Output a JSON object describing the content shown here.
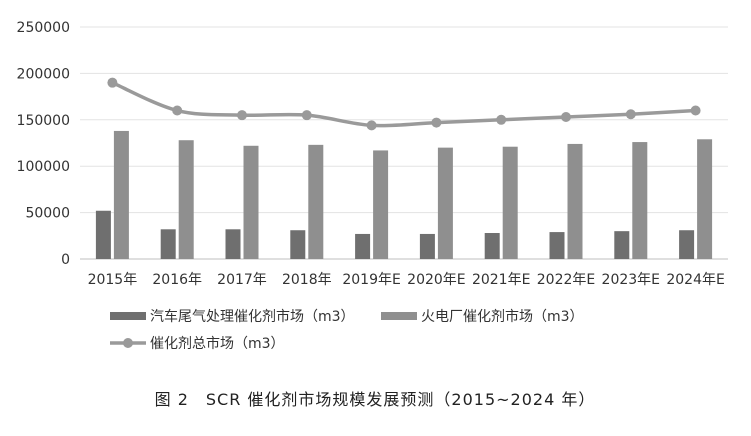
{
  "chart_data": {
    "type": "bar",
    "categories": [
      "2015年",
      "2016年",
      "2017年",
      "2018年",
      "2019年E",
      "2020年E",
      "2021年E",
      "2022年E",
      "2023年E",
      "2024年E"
    ],
    "series": [
      {
        "name": "汽车尾气处理催化剂市场（m3）",
        "type": "bar",
        "color": "#6f6f6f",
        "values": [
          52000,
          32000,
          32000,
          31000,
          27000,
          27000,
          28000,
          29000,
          30000,
          31000
        ]
      },
      {
        "name": "火电厂催化剂市场（m3）",
        "type": "bar",
        "color": "#8f8f8f",
        "values": [
          138000,
          128000,
          122000,
          123000,
          117000,
          120000,
          121000,
          124000,
          126000,
          129000
        ]
      },
      {
        "name": "催化剂总市场（m3）",
        "type": "line",
        "color": "#9a9a9a",
        "values": [
          190000,
          160000,
          155000,
          155000,
          144000,
          147000,
          150000,
          153000,
          156000,
          160000
        ]
      }
    ],
    "ylim": [
      0,
      250000
    ],
    "yticks": [
      "0",
      "50000",
      "100000",
      "150000",
      "200000",
      "250000"
    ],
    "grid": true,
    "legend_position": "bottom",
    "caption": "图 2　SCR 催化剂市场规模发展预测（2015~2024 年）"
  }
}
